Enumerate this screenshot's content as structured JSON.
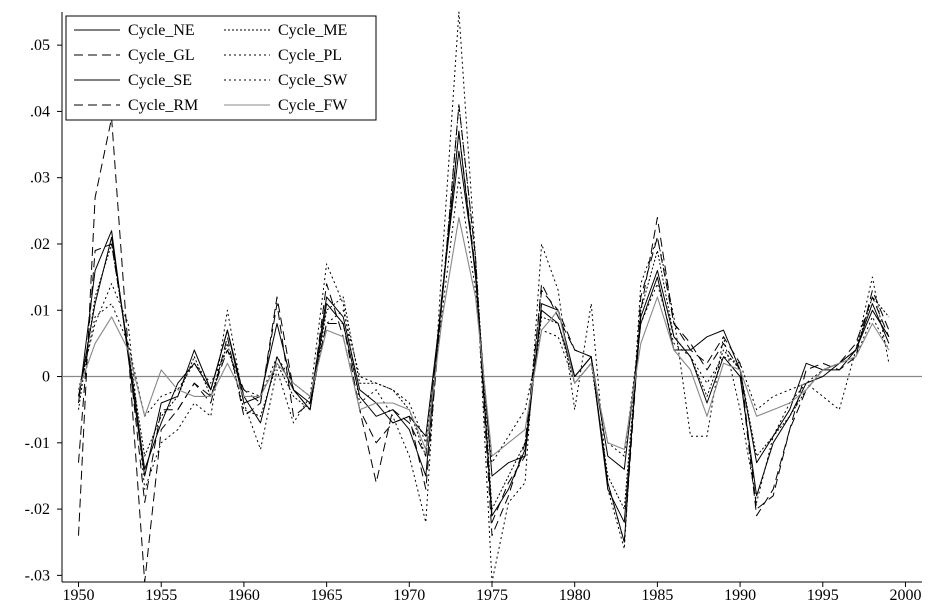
{
  "chart_data": {
    "type": "line",
    "title": "",
    "xlabel": "",
    "ylabel": "",
    "xlim": [
      1949,
      2001
    ],
    "ylim": [
      -0.031,
      0.055
    ],
    "x_ticks": [
      1950,
      1955,
      1960,
      1965,
      1970,
      1975,
      1980,
      1985,
      1990,
      1995,
      2000
    ],
    "x_tick_labels": [
      "1950",
      "1955",
      "1960",
      "1965",
      "1970",
      "1975",
      "1980",
      "1985",
      "1990",
      "1995",
      "2000"
    ],
    "y_ticks": [
      -0.03,
      -0.02,
      -0.01,
      0,
      0.01,
      0.02,
      0.03,
      0.04,
      0.05
    ],
    "y_tick_labels": [
      "-.03",
      "-.02",
      "-.01",
      "0",
      ".01",
      ".02",
      ".03",
      ".04",
      ".05"
    ],
    "zero_line": true,
    "grid": false,
    "legend_position": "top-left",
    "x": [
      1950,
      1951,
      1952,
      1953,
      1954,
      1955,
      1956,
      1957,
      1958,
      1959,
      1960,
      1961,
      1962,
      1963,
      1964,
      1965,
      1966,
      1967,
      1968,
      1969,
      1970,
      1971,
      1972,
      1973,
      1974,
      1975,
      1976,
      1977,
      1978,
      1979,
      1980,
      1981,
      1982,
      1983,
      1984,
      1985,
      1986,
      1987,
      1988,
      1989,
      1990,
      1991,
      1992,
      1993,
      1994,
      1995,
      1996,
      1997,
      1998,
      1999
    ],
    "series": [
      {
        "name": "Cycle_NE",
        "style": "solid",
        "color": "#000000",
        "values": [
          -0.004,
          0.016,
          0.022,
          0.003,
          -0.015,
          -0.004,
          -0.003,
          0.004,
          -0.002,
          0.007,
          -0.004,
          -0.003,
          0.008,
          -0.002,
          -0.004,
          0.012,
          0.009,
          -0.002,
          -0.004,
          -0.007,
          -0.006,
          -0.009,
          0.012,
          0.037,
          0.015,
          -0.015,
          -0.013,
          -0.012,
          0.011,
          0.01,
          0.0,
          0.003,
          -0.012,
          -0.014,
          0.008,
          0.015,
          0.004,
          0.004,
          0.006,
          0.007,
          0.001,
          -0.013,
          -0.009,
          -0.005,
          0.002,
          0.001,
          0.001,
          0.004,
          0.01,
          0.006
        ]
      },
      {
        "name": "Cycle_ME",
        "style": "dotted-fine",
        "color": "#000000",
        "values": [
          -0.005,
          0.012,
          0.02,
          0.004,
          -0.012,
          -0.006,
          -0.003,
          0.003,
          -0.003,
          0.005,
          -0.005,
          -0.006,
          0.002,
          -0.003,
          -0.005,
          0.01,
          0.012,
          -0.001,
          -0.001,
          -0.002,
          -0.005,
          -0.012,
          0.012,
          0.041,
          0.018,
          -0.02,
          -0.015,
          -0.01,
          0.009,
          0.008,
          -0.001,
          0.002,
          -0.015,
          -0.02,
          0.01,
          0.019,
          0.006,
          0.003,
          -0.003,
          0.004,
          0.001,
          -0.012,
          -0.009,
          -0.006,
          -0.002,
          0.001,
          0.002,
          0.004,
          0.012,
          0.009
        ]
      },
      {
        "name": "Cycle_GL",
        "style": "dashed",
        "color": "#000000",
        "values": [
          -0.024,
          0.027,
          0.039,
          0.004,
          -0.031,
          -0.008,
          -0.005,
          -0.001,
          -0.004,
          0.006,
          -0.006,
          -0.004,
          0.011,
          -0.006,
          -0.004,
          0.008,
          0.008,
          -0.005,
          -0.016,
          -0.005,
          -0.007,
          -0.012,
          0.013,
          0.037,
          0.016,
          -0.024,
          -0.018,
          -0.01,
          0.013,
          0.01,
          0.004,
          0.003,
          -0.016,
          -0.025,
          0.01,
          0.024,
          0.008,
          0.004,
          0.002,
          0.006,
          0.002,
          -0.02,
          -0.018,
          -0.008,
          0.001,
          0.002,
          0.001,
          0.003,
          0.013,
          0.007
        ]
      },
      {
        "name": "Cycle_PL",
        "style": "dotted",
        "color": "#000000",
        "values": [
          -0.003,
          0.009,
          0.011,
          0.005,
          -0.006,
          -0.003,
          -0.002,
          0.002,
          -0.001,
          0.004,
          -0.002,
          -0.003,
          0.003,
          -0.001,
          -0.003,
          0.008,
          0.01,
          0.0,
          -0.001,
          -0.002,
          -0.004,
          -0.01,
          0.01,
          0.03,
          0.013,
          -0.013,
          -0.009,
          -0.005,
          0.007,
          0.006,
          -0.001,
          0.002,
          -0.01,
          -0.012,
          0.008,
          0.014,
          0.005,
          0.003,
          -0.001,
          0.003,
          0.002,
          -0.005,
          -0.003,
          -0.002,
          -0.001,
          0.001,
          0.002,
          0.003,
          0.009,
          0.004
        ]
      },
      {
        "name": "Cycle_SE",
        "style": "solid",
        "color": "#000000",
        "values": [
          -0.003,
          0.011,
          0.021,
          0.004,
          -0.014,
          -0.007,
          -0.001,
          0.002,
          -0.002,
          0.007,
          -0.003,
          -0.007,
          0.003,
          -0.002,
          -0.005,
          0.011,
          0.008,
          -0.003,
          -0.006,
          -0.005,
          -0.008,
          -0.015,
          0.013,
          0.034,
          0.016,
          -0.021,
          -0.017,
          -0.011,
          0.01,
          0.008,
          0.0,
          0.003,
          -0.017,
          -0.022,
          0.009,
          0.016,
          0.006,
          0.003,
          -0.004,
          0.003,
          0.0,
          -0.018,
          -0.01,
          -0.006,
          -0.001,
          0.0,
          0.002,
          0.004,
          0.011,
          0.005
        ]
      },
      {
        "name": "Cycle_SW",
        "style": "dotted",
        "color": "#000000",
        "values": [
          -0.002,
          0.008,
          0.014,
          0.008,
          -0.017,
          -0.01,
          -0.008,
          -0.004,
          -0.006,
          0.01,
          -0.004,
          -0.011,
          0.001,
          -0.007,
          -0.003,
          0.017,
          0.011,
          -0.004,
          -0.002,
          -0.006,
          -0.012,
          -0.022,
          0.018,
          0.055,
          0.018,
          -0.031,
          -0.019,
          -0.016,
          0.02,
          0.013,
          -0.005,
          0.011,
          -0.017,
          -0.026,
          0.014,
          0.021,
          0.009,
          -0.009,
          -0.009,
          0.006,
          -0.005,
          -0.019,
          -0.009,
          -0.004,
          -0.001,
          -0.003,
          -0.005,
          0.004,
          0.015,
          0.002
        ]
      },
      {
        "name": "Cycle_RM",
        "style": "dashed",
        "color": "#000000",
        "values": [
          -0.013,
          0.019,
          0.02,
          0.004,
          -0.019,
          -0.005,
          -0.005,
          -0.001,
          -0.003,
          0.004,
          -0.002,
          -0.004,
          0.012,
          -0.002,
          -0.005,
          0.014,
          0.006,
          -0.005,
          -0.01,
          -0.007,
          -0.006,
          -0.017,
          0.012,
          0.041,
          0.018,
          -0.022,
          -0.016,
          -0.012,
          0.014,
          0.009,
          0.004,
          0.003,
          -0.016,
          -0.025,
          0.012,
          0.021,
          0.008,
          0.005,
          0.001,
          0.005,
          0.001,
          -0.021,
          -0.017,
          -0.008,
          -0.002,
          0.001,
          0.002,
          0.005,
          0.012,
          0.006
        ]
      },
      {
        "name": "Cycle_FW",
        "style": "solid-gray",
        "color": "#888888",
        "values": [
          -0.002,
          0.005,
          0.009,
          0.004,
          -0.006,
          0.001,
          -0.002,
          -0.003,
          -0.003,
          0.002,
          -0.003,
          -0.003,
          0.002,
          -0.001,
          -0.003,
          0.007,
          0.006,
          -0.005,
          -0.004,
          -0.004,
          -0.005,
          -0.011,
          0.009,
          0.024,
          0.012,
          -0.012,
          -0.01,
          -0.008,
          0.007,
          0.01,
          -0.001,
          0.002,
          -0.01,
          -0.011,
          0.005,
          0.012,
          0.004,
          0.001,
          -0.006,
          0.002,
          0.001,
          -0.006,
          -0.005,
          -0.004,
          -0.002,
          0.001,
          0.002,
          0.003,
          0.008,
          0.004
        ]
      }
    ]
  }
}
